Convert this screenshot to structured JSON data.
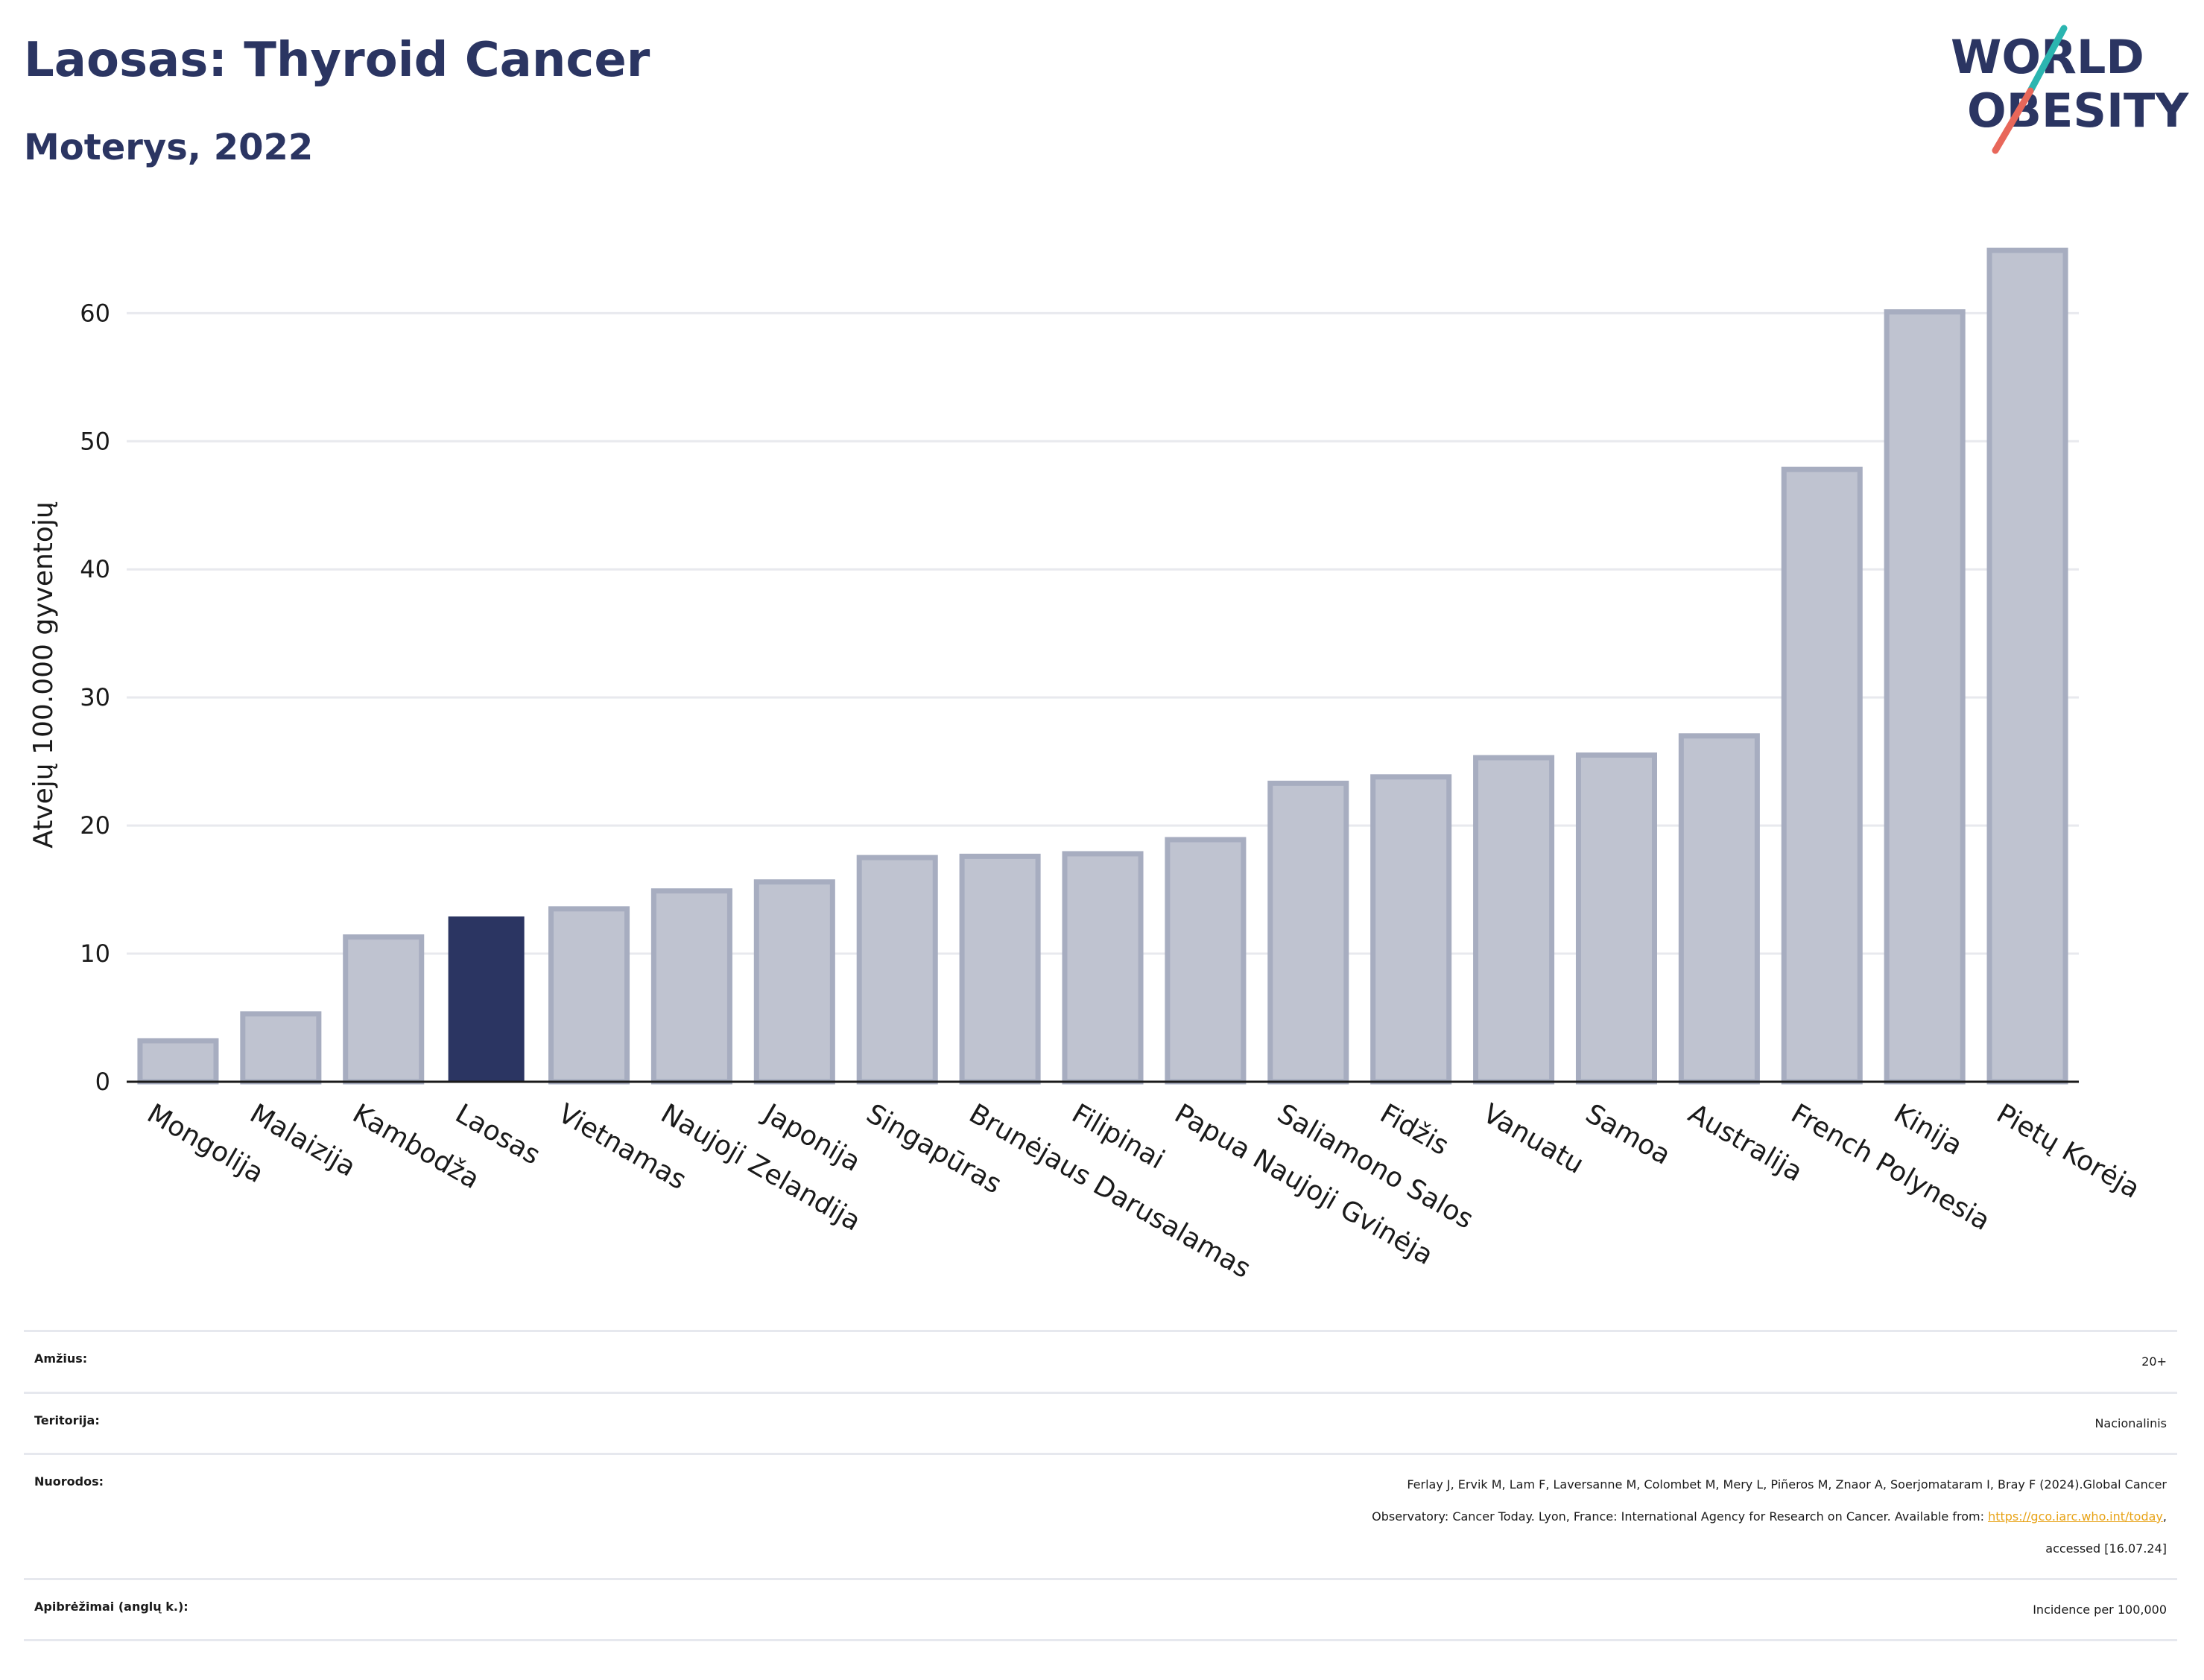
{
  "header": {
    "title": "Laosas: Thyroid Cancer",
    "subtitle": "Moterys, 2022"
  },
  "logo": {
    "line1": "WORLD",
    "line2": "OBESITY",
    "text_color": "#2b3562",
    "slash_colors": [
      "#2bb5b0",
      "#e8675a"
    ]
  },
  "chart_data": {
    "type": "bar",
    "title": "",
    "xlabel": "",
    "ylabel": "Atvejų 100.000 gyventojų",
    "ylim": [
      0,
      67
    ],
    "yticks": [
      0,
      10,
      20,
      30,
      40,
      50,
      60
    ],
    "grid": true,
    "highlight_color": "#2b3562",
    "bar_color": "#bfc3d0",
    "bar_edge_color": "#a7adc0",
    "highlight_category": "Laosas",
    "categories": [
      "Mongolija",
      "Malaizija",
      "Kambodža",
      "Laosas",
      "Vietnamas",
      "Naujoji Zelandija",
      "Japonija",
      "Singapūras",
      "Brunėjaus Darusalamas",
      "Filipinai",
      "Papua Naujoji Gvinėja",
      "Saliamono Salos",
      "Fidžis",
      "Vanuatu",
      "Samoa",
      "Australija",
      "French Polynesia",
      "Kinija",
      "Pietų Korėja"
    ],
    "values": [
      3.2,
      5.3,
      11.3,
      12.9,
      13.5,
      14.9,
      15.6,
      17.5,
      17.6,
      17.8,
      18.9,
      23.3,
      23.8,
      25.3,
      25.5,
      27.0,
      47.8,
      60.1,
      64.9
    ]
  },
  "meta": {
    "rows": [
      {
        "label": "Amžius:",
        "value_lines": [
          "20+"
        ]
      },
      {
        "label": "Teritorija:",
        "value_lines": [
          "Nacionalinis"
        ]
      },
      {
        "label": "Nuorodos:",
        "value_lines": [
          "Ferlay J, Ervik M, Lam F, Laversanne M, Colombet M, Mery L, Piñeros M, Znaor A, Soerjomataram I, Bray F (2024).Global Cancer",
          "Observatory: Cancer Today. Lyon, France: International Agency for Research on Cancer. Available from: ",
          "accessed [16.07.24]"
        ],
        "link": "https://gco.iarc.who.int/today",
        "link_suffix": ","
      },
      {
        "label": "Apibrėžimai (anglų k.):",
        "value_lines": [
          "Incidence per 100,000"
        ]
      }
    ]
  }
}
